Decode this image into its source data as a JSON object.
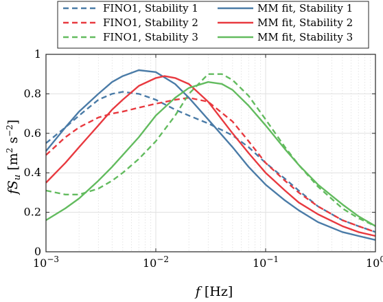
{
  "chart_data": {
    "type": "line",
    "xscale": "log",
    "xlim": [
      0.001,
      1
    ],
    "ylim": [
      0,
      1
    ],
    "grid": true,
    "legend_position": "top",
    "xlabel": "f [Hz]",
    "ylabel": "fS_u [m^2 s^-2]",
    "x_ticks": [
      {
        "value": 0.001,
        "base": "10",
        "exp": "−3"
      },
      {
        "value": 0.01,
        "base": "10",
        "exp": "−2"
      },
      {
        "value": 0.1,
        "base": "10",
        "exp": "−1"
      },
      {
        "value": 1,
        "base": "10",
        "exp": "0"
      }
    ],
    "y_ticks": [
      "0",
      "0.2",
      "0.4",
      "0.6",
      "0.8",
      "1"
    ],
    "series": [
      {
        "name": "FINO1, Stability 1",
        "style": "dashed",
        "color": "#4a7ba7",
        "x": [
          0.001,
          0.0015,
          0.002,
          0.003,
          0.004,
          0.005,
          0.007,
          0.01,
          0.015,
          0.02,
          0.03,
          0.05,
          0.07,
          0.1,
          0.15,
          0.2,
          0.3,
          0.5,
          0.7,
          1
        ],
        "y": [
          0.55,
          0.63,
          0.69,
          0.77,
          0.8,
          0.81,
          0.8,
          0.77,
          0.72,
          0.69,
          0.65,
          0.59,
          0.53,
          0.45,
          0.37,
          0.31,
          0.23,
          0.16,
          0.13,
          0.1
        ]
      },
      {
        "name": "FINO1, Stability 2",
        "style": "dashed",
        "color": "#e8393f",
        "x": [
          0.001,
          0.0015,
          0.002,
          0.003,
          0.004,
          0.005,
          0.007,
          0.01,
          0.015,
          0.02,
          0.03,
          0.05,
          0.07,
          0.1,
          0.15,
          0.2,
          0.3,
          0.5,
          0.7,
          1
        ],
        "y": [
          0.49,
          0.58,
          0.63,
          0.68,
          0.7,
          0.71,
          0.73,
          0.75,
          0.77,
          0.78,
          0.76,
          0.66,
          0.56,
          0.45,
          0.36,
          0.3,
          0.23,
          0.16,
          0.13,
          0.1
        ]
      },
      {
        "name": "FINO1, Stability 3",
        "style": "dashed",
        "color": "#62bb5e",
        "x": [
          0.001,
          0.0015,
          0.002,
          0.003,
          0.004,
          0.005,
          0.007,
          0.01,
          0.015,
          0.02,
          0.03,
          0.04,
          0.05,
          0.07,
          0.1,
          0.15,
          0.2,
          0.3,
          0.5,
          0.7,
          1
        ],
        "y": [
          0.31,
          0.29,
          0.29,
          0.32,
          0.36,
          0.4,
          0.47,
          0.56,
          0.69,
          0.8,
          0.9,
          0.9,
          0.87,
          0.79,
          0.67,
          0.53,
          0.44,
          0.33,
          0.22,
          0.17,
          0.13
        ]
      },
      {
        "name": "MM fit, Stability 1",
        "style": "solid",
        "color": "#4a7ba7",
        "x": [
          0.001,
          0.0015,
          0.002,
          0.003,
          0.004,
          0.005,
          0.007,
          0.01,
          0.015,
          0.02,
          0.03,
          0.05,
          0.07,
          0.1,
          0.15,
          0.2,
          0.3,
          0.5,
          0.7,
          1
        ],
        "y": [
          0.51,
          0.63,
          0.71,
          0.8,
          0.86,
          0.89,
          0.92,
          0.91,
          0.85,
          0.78,
          0.67,
          0.53,
          0.43,
          0.34,
          0.26,
          0.21,
          0.15,
          0.1,
          0.08,
          0.06
        ]
      },
      {
        "name": "MM fit, Stability 2",
        "style": "solid",
        "color": "#e8393f",
        "x": [
          0.001,
          0.0015,
          0.002,
          0.003,
          0.004,
          0.005,
          0.007,
          0.01,
          0.012,
          0.015,
          0.02,
          0.03,
          0.05,
          0.07,
          0.1,
          0.15,
          0.2,
          0.3,
          0.5,
          0.7,
          1
        ],
        "y": [
          0.35,
          0.45,
          0.53,
          0.64,
          0.72,
          0.77,
          0.84,
          0.88,
          0.89,
          0.88,
          0.85,
          0.76,
          0.6,
          0.5,
          0.4,
          0.31,
          0.25,
          0.19,
          0.13,
          0.1,
          0.08
        ]
      },
      {
        "name": "MM fit, Stability 3",
        "style": "solid",
        "color": "#62bb5e",
        "x": [
          0.001,
          0.0015,
          0.002,
          0.003,
          0.004,
          0.005,
          0.007,
          0.01,
          0.015,
          0.02,
          0.03,
          0.04,
          0.05,
          0.07,
          0.1,
          0.15,
          0.2,
          0.3,
          0.5,
          0.7,
          1
        ],
        "y": [
          0.16,
          0.22,
          0.27,
          0.36,
          0.43,
          0.49,
          0.58,
          0.69,
          0.78,
          0.83,
          0.86,
          0.85,
          0.82,
          0.74,
          0.64,
          0.52,
          0.44,
          0.34,
          0.24,
          0.18,
          0.13
        ]
      }
    ]
  }
}
